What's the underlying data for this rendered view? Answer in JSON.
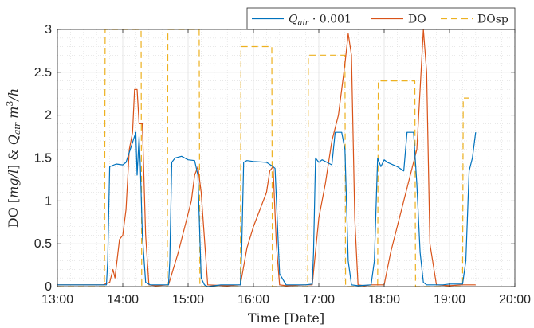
{
  "chart_data": {
    "type": "line",
    "xlabel": "Time [Date]",
    "ylabel": "DO [mg/l] & Q_air m^3/h",
    "ylabel_parts": {
      "pre": "DO [",
      "unit": "mg/l",
      "mid": "] & ",
      "q": "Q",
      "q_sub": "air",
      "m": " m",
      "m_sup": "3",
      "tail": "/h"
    },
    "xlim": [
      13.0,
      20.0
    ],
    "ylim": [
      0,
      3
    ],
    "x_ticks": [
      13,
      14,
      15,
      16,
      17,
      18,
      19,
      20
    ],
    "x_tick_labels": [
      "13:00",
      "14:00",
      "15:00",
      "16:00",
      "17:00",
      "18:00",
      "19:00",
      "20:00"
    ],
    "y_ticks": [
      0,
      0.5,
      1,
      1.5,
      2,
      2.5,
      3
    ],
    "y_tick_labels": [
      "0",
      "0.5",
      "1",
      "1.5",
      "2",
      "2.5",
      "3"
    ],
    "grid": true,
    "minor_grid": true,
    "legend_position": "top-right",
    "legend_orientation": "horizontal",
    "series": [
      {
        "name": "Q_air · 0.001",
        "legend_parts": {
          "q": "Q",
          "sub": "air",
          "rest": " · 0.001"
        },
        "color": "#0072BD",
        "style": "solid",
        "x": [
          13.0,
          13.4,
          13.75,
          13.77,
          13.8,
          13.9,
          14.0,
          14.05,
          14.2,
          14.22,
          14.25,
          14.27,
          14.3,
          14.35,
          14.42,
          14.5,
          14.7,
          14.72,
          14.75,
          14.8,
          14.9,
          15.0,
          15.1,
          15.15,
          15.2,
          15.25,
          15.3,
          15.5,
          15.8,
          15.82,
          15.85,
          15.9,
          16.0,
          16.2,
          16.3,
          16.33,
          16.4,
          16.5,
          16.8,
          16.9,
          16.92,
          16.95,
          17.0,
          17.05,
          17.2,
          17.25,
          17.3,
          17.35,
          17.4,
          17.45,
          17.5,
          17.6,
          17.8,
          17.85,
          17.9,
          17.95,
          18.0,
          18.05,
          18.2,
          18.3,
          18.35,
          18.45,
          18.5,
          18.55,
          18.6,
          18.65,
          18.8,
          18.9,
          19.0,
          19.2,
          19.25,
          19.3,
          19.35,
          19.4
        ],
        "y": [
          0.02,
          0.02,
          0.02,
          0.3,
          1.4,
          1.43,
          1.42,
          1.45,
          1.8,
          1.3,
          1.75,
          1.4,
          0.6,
          0.05,
          0.02,
          0.02,
          0.02,
          0.3,
          1.45,
          1.5,
          1.52,
          1.48,
          1.47,
          1.3,
          0.1,
          0.02,
          0.0,
          0.02,
          0.02,
          0.4,
          1.45,
          1.47,
          1.46,
          1.45,
          1.4,
          1.38,
          0.15,
          0.02,
          0.02,
          0.03,
          0.4,
          1.5,
          1.45,
          1.48,
          1.42,
          1.8,
          1.8,
          1.8,
          1.6,
          0.3,
          0.02,
          0.01,
          0.02,
          0.3,
          1.5,
          1.4,
          1.48,
          1.45,
          1.4,
          1.35,
          1.8,
          1.8,
          1.2,
          0.4,
          0.05,
          0.02,
          0.02,
          0.02,
          0.03,
          0.03,
          0.3,
          1.35,
          1.5,
          1.8
        ]
      },
      {
        "name": "DO",
        "color": "#D95319",
        "style": "solid",
        "x": [
          13.0,
          13.7,
          13.8,
          13.85,
          13.88,
          13.95,
          14.0,
          14.05,
          14.1,
          14.15,
          14.18,
          14.22,
          14.25,
          14.3,
          14.35,
          14.4,
          14.5,
          14.7,
          14.85,
          14.95,
          15.05,
          15.1,
          15.15,
          15.2,
          15.3,
          15.6,
          15.8,
          15.9,
          16.0,
          16.1,
          16.2,
          16.25,
          16.3,
          16.35,
          16.4,
          16.5,
          16.8,
          16.9,
          17.0,
          17.1,
          17.2,
          17.3,
          17.4,
          17.45,
          17.5,
          17.55,
          17.6,
          17.7,
          17.8,
          17.9,
          18.0,
          18.1,
          18.2,
          18.3,
          18.4,
          18.5,
          18.55,
          18.6,
          18.65,
          18.7,
          18.8,
          19.0,
          19.2,
          19.4
        ],
        "y": [
          0.02,
          0.02,
          0.05,
          0.2,
          0.1,
          0.55,
          0.6,
          0.9,
          1.6,
          1.8,
          2.3,
          2.3,
          1.9,
          1.9,
          0.6,
          0.02,
          0.01,
          0.02,
          0.4,
          0.7,
          1.0,
          1.3,
          1.4,
          1.1,
          0.02,
          0.01,
          0.02,
          0.45,
          0.7,
          0.9,
          1.1,
          1.35,
          1.4,
          0.5,
          0.02,
          0.01,
          0.02,
          0.02,
          0.8,
          1.2,
          1.7,
          2.0,
          2.6,
          2.95,
          2.7,
          0.8,
          0.02,
          0.01,
          0.02,
          0.02,
          0.02,
          0.4,
          0.7,
          1.0,
          1.3,
          1.6,
          2.3,
          3.0,
          2.5,
          0.5,
          0.02,
          0.01,
          0.02,
          0.02
        ]
      },
      {
        "name": "DOsp",
        "color": "#EDB120",
        "style": "dashed",
        "x": [
          13.0,
          13.72,
          13.73,
          14.28,
          14.29,
          14.68,
          14.69,
          15.17,
          15.18,
          15.8,
          15.81,
          16.28,
          16.29,
          16.83,
          16.84,
          17.4,
          17.41,
          17.9,
          17.91,
          18.47,
          18.48,
          19.2,
          19.21,
          19.3
        ],
        "y": [
          0,
          0,
          3.0,
          3.0,
          0,
          0,
          3.0,
          3.0,
          0,
          0,
          2.8,
          2.8,
          0,
          0,
          2.7,
          2.7,
          0,
          0,
          2.4,
          2.4,
          0,
          0,
          2.2,
          2.2
        ]
      }
    ]
  }
}
